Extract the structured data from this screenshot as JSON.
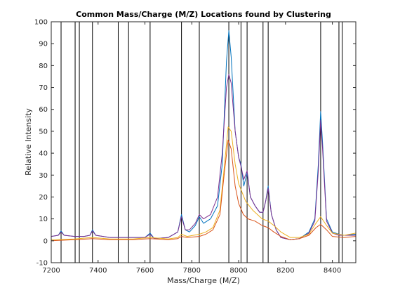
{
  "chart_data": {
    "type": "line",
    "title": "Common Mass/Charge (M/Z) Locations found by Clustering",
    "xlabel": "Mass/Charge (M/Z)",
    "ylabel": "Relative Intensity",
    "xlim": [
      7200,
      8500
    ],
    "ylim": [
      -10,
      100
    ],
    "xticks": [
      7200,
      7400,
      7600,
      7800,
      8000,
      8200,
      8400
    ],
    "yticks": [
      -10,
      0,
      10,
      20,
      30,
      40,
      50,
      60,
      70,
      80,
      90,
      100
    ],
    "grid": false,
    "legend": "none",
    "cluster_lines": [
      7242,
      7302,
      7320,
      7376,
      7486,
      7530,
      7622,
      7756,
      7832,
      7958,
      8010,
      8036,
      8104,
      8126,
      8350,
      8428,
      8442
    ],
    "series": [
      {
        "color": "#0072bd",
        "points": [
          [
            7200,
            2
          ],
          [
            7230,
            2.5
          ],
          [
            7242,
            4.5
          ],
          [
            7255,
            2.5
          ],
          [
            7300,
            2
          ],
          [
            7340,
            2
          ],
          [
            7365,
            2.5
          ],
          [
            7376,
            5
          ],
          [
            7390,
            2.5
          ],
          [
            7450,
            1.5
          ],
          [
            7486,
            1.5
          ],
          [
            7530,
            1.5
          ],
          [
            7600,
            1.5
          ],
          [
            7622,
            3.5
          ],
          [
            7640,
            1
          ],
          [
            7700,
            1.5
          ],
          [
            7740,
            4
          ],
          [
            7756,
            12
          ],
          [
            7772,
            5
          ],
          [
            7790,
            4
          ],
          [
            7815,
            7
          ],
          [
            7832,
            11
          ],
          [
            7850,
            8
          ],
          [
            7880,
            10
          ],
          [
            7910,
            16
          ],
          [
            7930,
            35
          ],
          [
            7948,
            82
          ],
          [
            7958,
            96
          ],
          [
            7968,
            84
          ],
          [
            7985,
            50
          ],
          [
            8000,
            38
          ],
          [
            8010,
            35
          ],
          [
            8022,
            25
          ],
          [
            8036,
            31
          ],
          [
            8050,
            20
          ],
          [
            8070,
            16
          ],
          [
            8090,
            13
          ],
          [
            8104,
            13
          ],
          [
            8115,
            18
          ],
          [
            8126,
            25
          ],
          [
            8140,
            12
          ],
          [
            8160,
            5
          ],
          [
            8180,
            1.5
          ],
          [
            8220,
            0.5
          ],
          [
            8260,
            1
          ],
          [
            8300,
            4
          ],
          [
            8325,
            10
          ],
          [
            8340,
            35
          ],
          [
            8350,
            59
          ],
          [
            8358,
            45
          ],
          [
            8375,
            10
          ],
          [
            8400,
            4
          ],
          [
            8428,
            3
          ],
          [
            8450,
            2.5
          ],
          [
            8500,
            3
          ]
        ]
      },
      {
        "color": "#7e2f8e",
        "points": [
          [
            7200,
            2
          ],
          [
            7230,
            2.5
          ],
          [
            7242,
            4
          ],
          [
            7255,
            2.5
          ],
          [
            7300,
            2
          ],
          [
            7340,
            2
          ],
          [
            7365,
            2.5
          ],
          [
            7376,
            4.5
          ],
          [
            7390,
            2.5
          ],
          [
            7450,
            1.5
          ],
          [
            7486,
            1.5
          ],
          [
            7530,
            1.5
          ],
          [
            7600,
            1.5
          ],
          [
            7622,
            3
          ],
          [
            7640,
            1
          ],
          [
            7700,
            1.5
          ],
          [
            7740,
            4
          ],
          [
            7756,
            11
          ],
          [
            7772,
            5
          ],
          [
            7790,
            5
          ],
          [
            7815,
            8
          ],
          [
            7832,
            12
          ],
          [
            7850,
            10
          ],
          [
            7880,
            12
          ],
          [
            7910,
            20
          ],
          [
            7930,
            40
          ],
          [
            7948,
            70
          ],
          [
            7958,
            76
          ],
          [
            7968,
            72
          ],
          [
            7985,
            50
          ],
          [
            8000,
            38
          ],
          [
            8010,
            34
          ],
          [
            8022,
            28
          ],
          [
            8036,
            32
          ],
          [
            8050,
            20
          ],
          [
            8070,
            16
          ],
          [
            8090,
            13
          ],
          [
            8104,
            13
          ],
          [
            8115,
            18
          ],
          [
            8126,
            24
          ],
          [
            8140,
            12
          ],
          [
            8160,
            5
          ],
          [
            8180,
            1.5
          ],
          [
            8220,
            0.5
          ],
          [
            8260,
            1
          ],
          [
            8300,
            3.5
          ],
          [
            8325,
            9
          ],
          [
            8340,
            32
          ],
          [
            8350,
            55
          ],
          [
            8358,
            42
          ],
          [
            8375,
            9
          ],
          [
            8400,
            3.5
          ],
          [
            8428,
            2.5
          ],
          [
            8450,
            2.5
          ],
          [
            8500,
            2.5
          ]
        ]
      },
      {
        "color": "#edb120",
        "points": [
          [
            7200,
            0.5
          ],
          [
            7300,
            0.8
          ],
          [
            7376,
            1.5
          ],
          [
            7450,
            0.8
          ],
          [
            7550,
            0.8
          ],
          [
            7622,
            1.5
          ],
          [
            7700,
            0.8
          ],
          [
            7740,
            1.5
          ],
          [
            7756,
            3
          ],
          [
            7780,
            2
          ],
          [
            7832,
            3
          ],
          [
            7860,
            4
          ],
          [
            7890,
            6
          ],
          [
            7920,
            14
          ],
          [
            7940,
            35
          ],
          [
            7955,
            52
          ],
          [
            7968,
            50
          ],
          [
            7985,
            35
          ],
          [
            8000,
            26
          ],
          [
            8030,
            18
          ],
          [
            8060,
            14
          ],
          [
            8100,
            10
          ],
          [
            8126,
            9
          ],
          [
            8150,
            7
          ],
          [
            8180,
            4
          ],
          [
            8220,
            1.5
          ],
          [
            8260,
            1.5
          ],
          [
            8300,
            3
          ],
          [
            8330,
            8
          ],
          [
            8350,
            11
          ],
          [
            8375,
            7
          ],
          [
            8400,
            3.5
          ],
          [
            8450,
            2.5
          ],
          [
            8500,
            3.5
          ]
        ]
      },
      {
        "color": "#d95319",
        "points": [
          [
            7200,
            0
          ],
          [
            7300,
            0.5
          ],
          [
            7376,
            1
          ],
          [
            7450,
            0.5
          ],
          [
            7550,
            0.5
          ],
          [
            7622,
            1
          ],
          [
            7700,
            0.5
          ],
          [
            7740,
            1
          ],
          [
            7756,
            2
          ],
          [
            7780,
            1.5
          ],
          [
            7832,
            2
          ],
          [
            7860,
            3
          ],
          [
            7890,
            5
          ],
          [
            7920,
            12
          ],
          [
            7940,
            32
          ],
          [
            7955,
            46
          ],
          [
            7968,
            42
          ],
          [
            7985,
            25
          ],
          [
            8000,
            17
          ],
          [
            8020,
            12
          ],
          [
            8040,
            10
          ],
          [
            8070,
            9
          ],
          [
            8100,
            7
          ],
          [
            8126,
            6
          ],
          [
            8150,
            4
          ],
          [
            8180,
            2
          ],
          [
            8220,
            0.5
          ],
          [
            8260,
            1
          ],
          [
            8300,
            2.5
          ],
          [
            8330,
            6
          ],
          [
            8350,
            7.5
          ],
          [
            8375,
            5
          ],
          [
            8400,
            2
          ],
          [
            8450,
            1.5
          ],
          [
            8500,
            2
          ]
        ]
      }
    ]
  }
}
